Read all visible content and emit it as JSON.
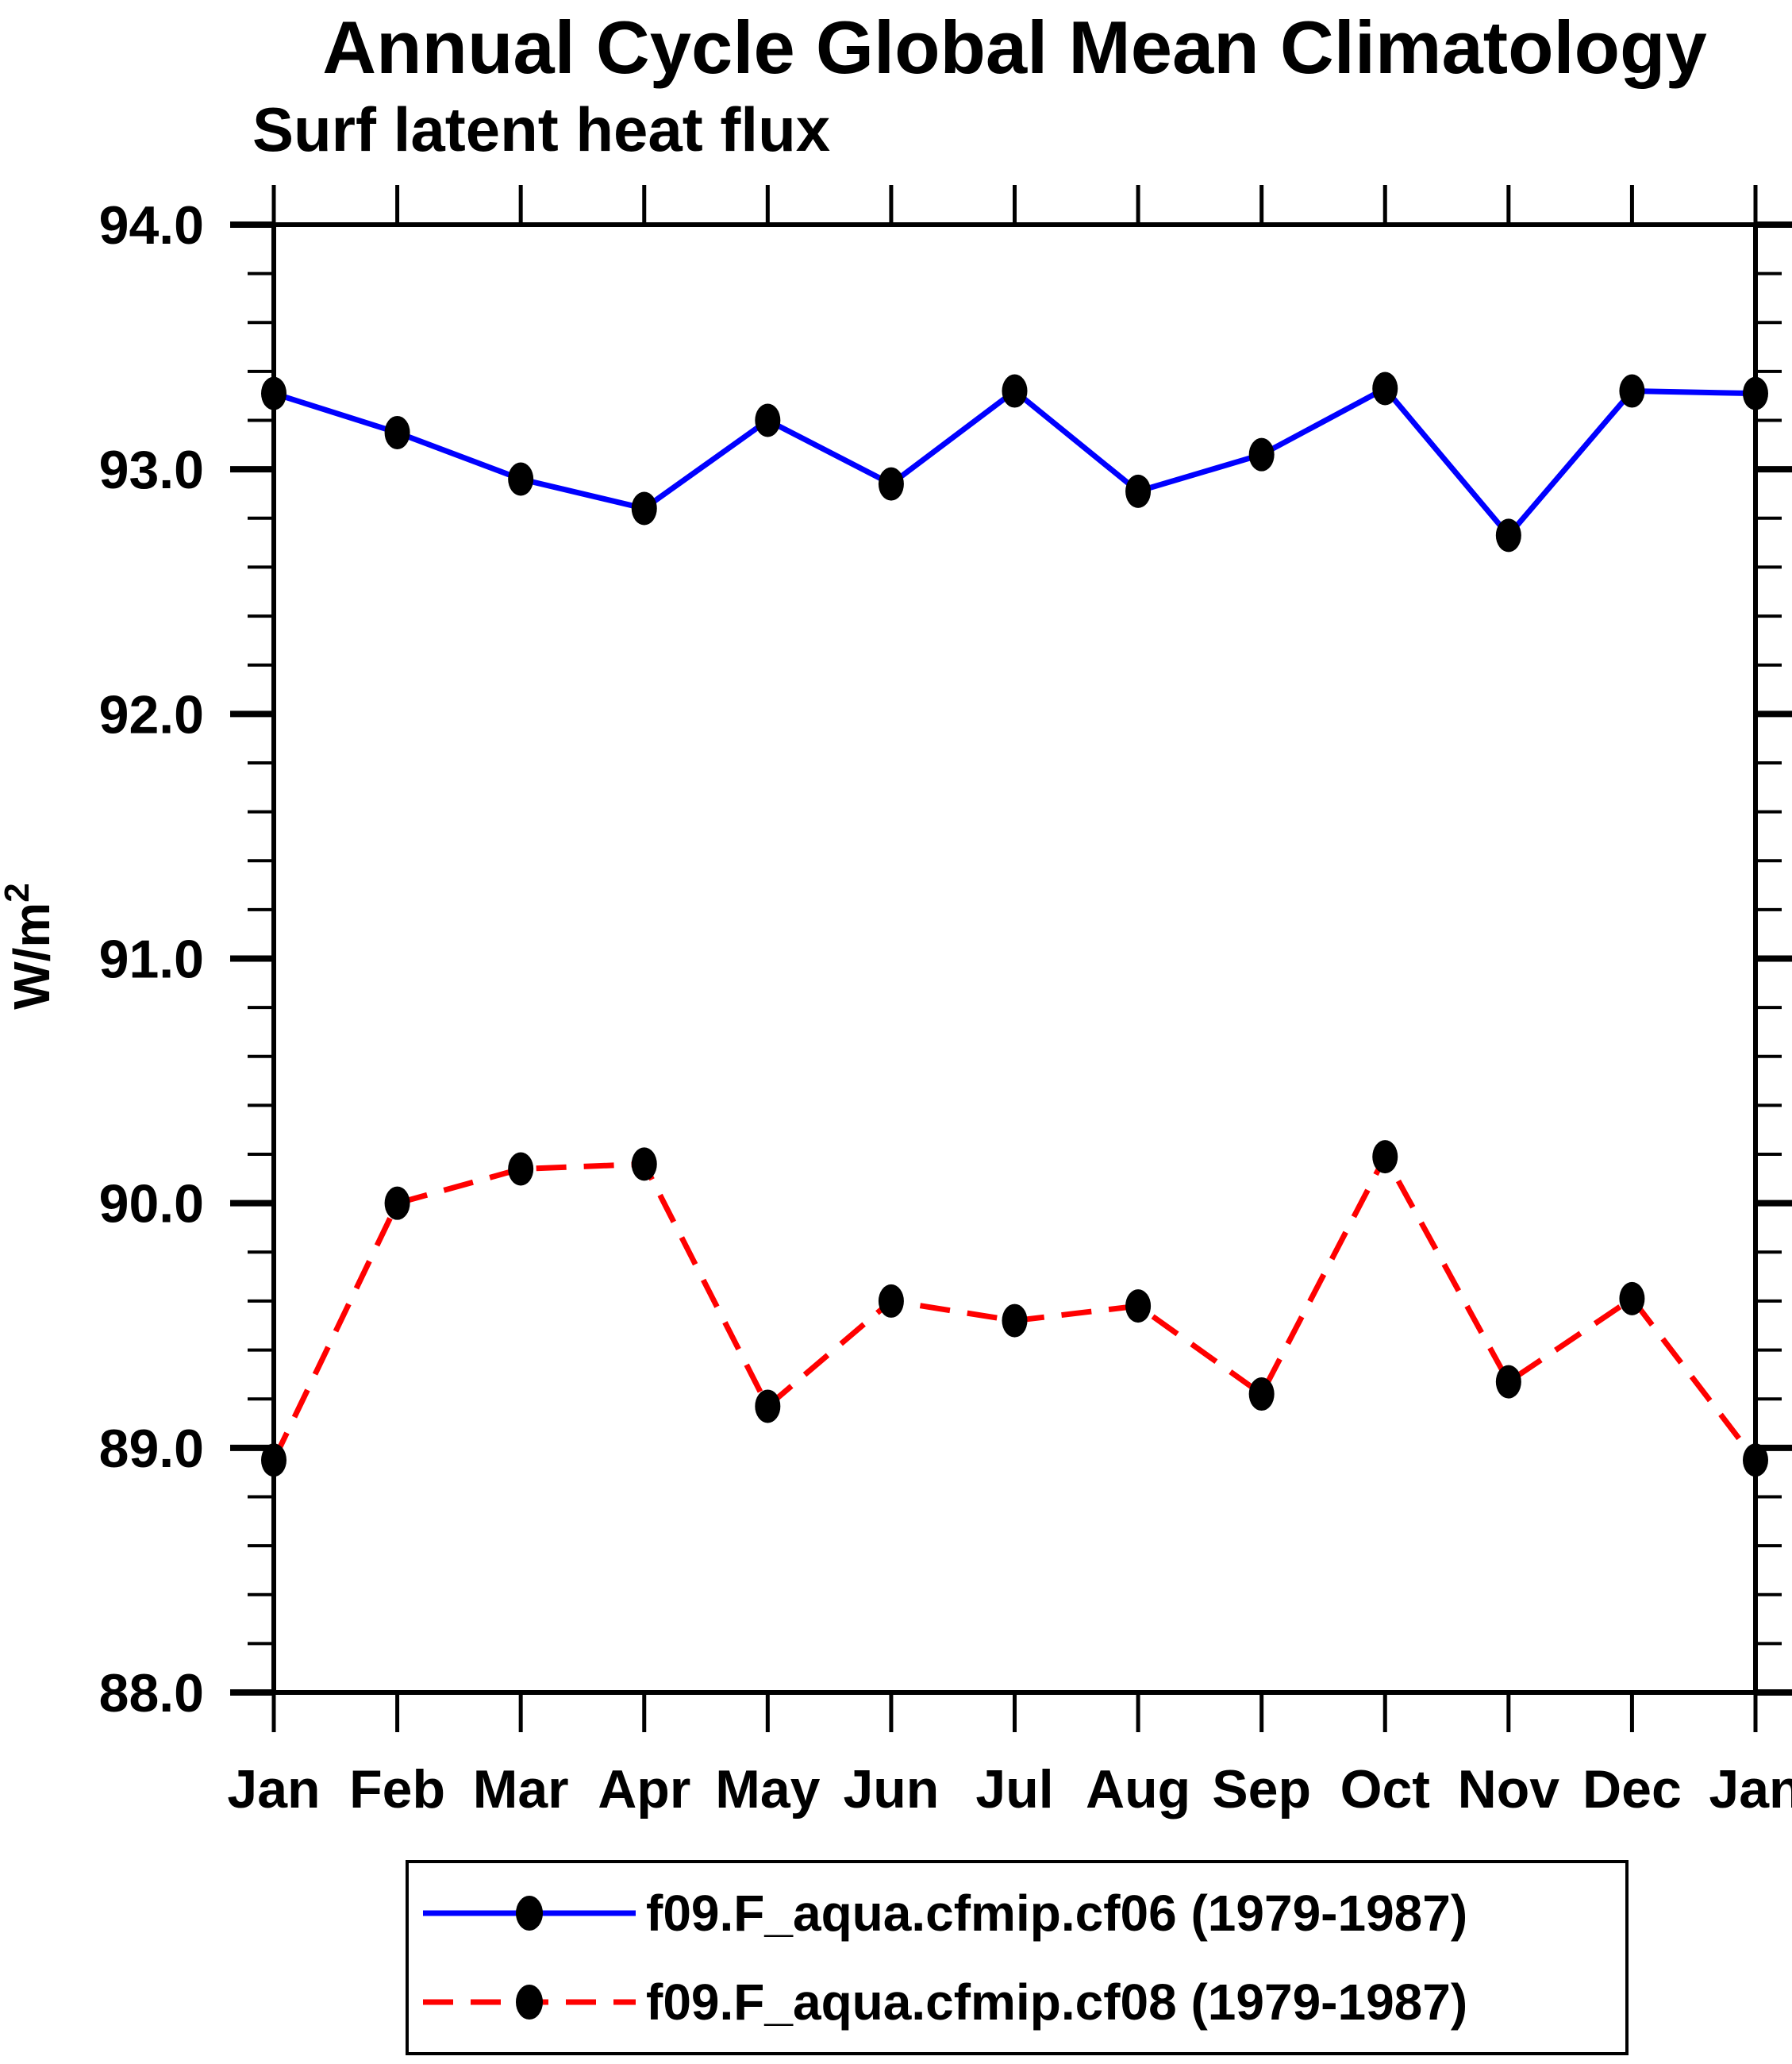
{
  "title": "Annual Cycle Global Mean Climatology",
  "subtitle": "Surf latent heat flux",
  "y_axis_label": {
    "base": "W/m",
    "superscript": "2"
  },
  "colors": {
    "series1": "#0000ff",
    "series2": "#ff0000",
    "marker": "#000000",
    "axis": "#000000",
    "background": "#ffffff"
  },
  "chart_data": {
    "type": "line",
    "title": "Annual Cycle Global Mean Climatology",
    "subtitle": "Surf latent heat flux",
    "ylabel": "W/m2",
    "xlabel": "",
    "categories": [
      "Jan",
      "Feb",
      "Mar",
      "Apr",
      "May",
      "Jun",
      "Jul",
      "Aug",
      "Sep",
      "Oct",
      "Nov",
      "Dec",
      "Jan"
    ],
    "ylim": [
      88.0,
      94.0
    ],
    "ytick_interval": 1.0,
    "yminor_interval": 0.2,
    "ytick_labels": [
      "88.0",
      "89.0",
      "90.0",
      "91.0",
      "92.0",
      "93.0",
      "94.0"
    ],
    "grid": false,
    "legend_position": "bottom",
    "series": [
      {
        "name": "f09.F_aqua.cfmip.cf06 (1979-1987)",
        "color": "#0000ff",
        "style": "solid",
        "marker": "filled-black-circle",
        "values": [
          93.31,
          93.15,
          92.96,
          92.84,
          93.2,
          92.94,
          93.32,
          92.91,
          93.06,
          93.33,
          92.73,
          93.32,
          93.31
        ]
      },
      {
        "name": "f09.F_aqua.cfmip.cf08 (1979-1987)",
        "color": "#ff0000",
        "style": "dashed",
        "marker": "filled-black-circle",
        "values": [
          88.95,
          90.0,
          90.14,
          90.16,
          89.17,
          89.6,
          89.52,
          89.58,
          89.22,
          90.19,
          89.27,
          89.61,
          88.95
        ]
      }
    ]
  }
}
